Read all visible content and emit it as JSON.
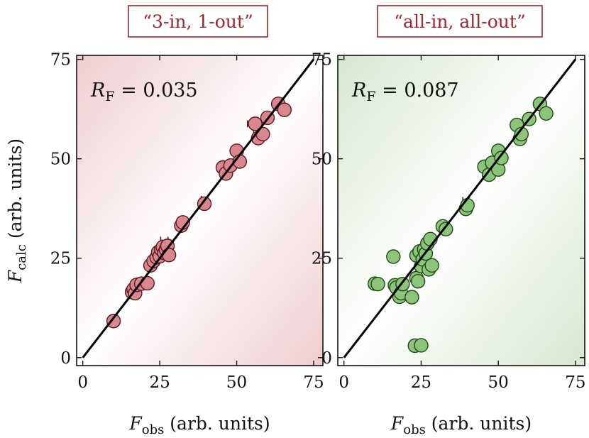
{
  "chart_data": [
    {
      "type": "scatter",
      "title": "“3-in, 1-out”",
      "annotation": {
        "symbol": "R",
        "subscript": "F",
        "equals_text": " = 0.035"
      },
      "xlabel": {
        "symbol": "F",
        "subscript": "obs",
        "rest": " (arb. units)"
      },
      "ylabel": {
        "symbol": "F",
        "subscript": "calc",
        "rest": " (arb. units)"
      },
      "xlim": [
        -2,
        78
      ],
      "ylim": [
        -2,
        76
      ],
      "xticks": [
        0,
        25,
        50,
        75
      ],
      "yticks": [
        0,
        25,
        50,
        75
      ],
      "grid": false,
      "fill_color": "#d9868c",
      "edge_color": "#5a1a22",
      "title_color": "#a0252f",
      "background_gradient": [
        "#efcdd0",
        "#ffffff",
        "#efcdd0"
      ],
      "fit_line": {
        "x": [
          0,
          75
        ],
        "y": [
          0,
          75
        ]
      },
      "points": [
        {
          "x": 10,
          "y": 9.2
        },
        {
          "x": 16,
          "y": 16.5
        },
        {
          "x": 16.5,
          "y": 17.2
        },
        {
          "x": 17,
          "y": 16.2
        },
        {
          "x": 17.5,
          "y": 18.3
        },
        {
          "x": 19,
          "y": 18.6
        },
        {
          "x": 21,
          "y": 18.7
        },
        {
          "x": 22,
          "y": 23.2
        },
        {
          "x": 23,
          "y": 24.3
        },
        {
          "x": 24,
          "y": 25.2
        },
        {
          "x": 24.5,
          "y": 26.5
        },
        {
          "x": 25,
          "y": 25.5
        },
        {
          "x": 25.5,
          "y": 27.2
        },
        {
          "x": 26,
          "y": 27.8
        },
        {
          "x": 26.5,
          "y": 26.3
        },
        {
          "x": 27,
          "y": 27.2
        },
        {
          "x": 27.5,
          "y": 28.1
        },
        {
          "x": 28,
          "y": 25.8
        },
        {
          "x": 32,
          "y": 33.2
        },
        {
          "x": 32.5,
          "y": 34.0
        },
        {
          "x": 39.5,
          "y": 38.7
        },
        {
          "x": 45.5,
          "y": 47.8
        },
        {
          "x": 46.5,
          "y": 46.3
        },
        {
          "x": 48,
          "y": 48.3
        },
        {
          "x": 50,
          "y": 52.0
        },
        {
          "x": 51,
          "y": 49.3
        },
        {
          "x": 56,
          "y": 58.8
        },
        {
          "x": 57,
          "y": 55.2
        },
        {
          "x": 58.5,
          "y": 56.2
        },
        {
          "x": 60,
          "y": 60.3
        },
        {
          "x": 63.5,
          "y": 63.8
        },
        {
          "x": 65.5,
          "y": 62.3
        }
      ],
      "error_bars": [
        {
          "x": 26.5,
          "y": 29.5,
          "xerr": 1.2
        },
        {
          "x": 39.5,
          "y": 39.8,
          "xerr": 1.0
        },
        {
          "x": 55,
          "y": 58.8,
          "xerr": 1.5
        },
        {
          "x": 57,
          "y": 56.2,
          "xerr": 1.5
        },
        {
          "x": 63.5,
          "y": 64.5,
          "xerr": 1.0
        }
      ]
    },
    {
      "type": "scatter",
      "title": "“all-in, all-out”",
      "annotation": {
        "symbol": "R",
        "subscript": "F",
        "equals_text": " = 0.087"
      },
      "xlabel": {
        "symbol": "F",
        "subscript": "obs",
        "rest": " (arb. units)"
      },
      "ylabel": null,
      "xlim": [
        -2,
        78
      ],
      "ylim": [
        -2,
        76
      ],
      "xticks": [
        0,
        25,
        50,
        75
      ],
      "yticks": [
        0,
        25,
        50,
        75
      ],
      "grid": false,
      "fill_color": "#8cc47a",
      "edge_color": "#1f4a18",
      "title_color": "#a0252f",
      "background_gradient": [
        "#d7e8cf",
        "#ffffff",
        "#d7e8cf"
      ],
      "fit_line": {
        "x": [
          0,
          75
        ],
        "y": [
          0,
          75
        ]
      },
      "points": [
        {
          "x": 10,
          "y": 18.6
        },
        {
          "x": 11,
          "y": 18.5
        },
        {
          "x": 16,
          "y": 25.4
        },
        {
          "x": 16.5,
          "y": 18.2
        },
        {
          "x": 17,
          "y": 17.6
        },
        {
          "x": 18,
          "y": 15.3
        },
        {
          "x": 18.5,
          "y": 16.2
        },
        {
          "x": 19,
          "y": 18.5
        },
        {
          "x": 22,
          "y": 15.2
        },
        {
          "x": 23,
          "y": 3.0
        },
        {
          "x": 23.5,
          "y": 20.0
        },
        {
          "x": 23.5,
          "y": 25.7
        },
        {
          "x": 24,
          "y": 19.2
        },
        {
          "x": 24.5,
          "y": 26.7
        },
        {
          "x": 25,
          "y": 3.1
        },
        {
          "x": 25,
          "y": 23.0
        },
        {
          "x": 25.5,
          "y": 24.7
        },
        {
          "x": 26,
          "y": 27.2
        },
        {
          "x": 26.5,
          "y": 26.2
        },
        {
          "x": 27,
          "y": 28.7
        },
        {
          "x": 27.5,
          "y": 22.2
        },
        {
          "x": 28,
          "y": 29.8
        },
        {
          "x": 28.5,
          "y": 23.2
        },
        {
          "x": 32,
          "y": 33.0
        },
        {
          "x": 33,
          "y": 32.3
        },
        {
          "x": 39.5,
          "y": 37.4
        },
        {
          "x": 40,
          "y": 38.3
        },
        {
          "x": 45.5,
          "y": 48.0
        },
        {
          "x": 47,
          "y": 46.0
        },
        {
          "x": 48,
          "y": 49.0
        },
        {
          "x": 50,
          "y": 47.3
        },
        {
          "x": 50,
          "y": 52.0
        },
        {
          "x": 51,
          "y": 50.2
        },
        {
          "x": 56,
          "y": 58.5
        },
        {
          "x": 57,
          "y": 55.0
        },
        {
          "x": 57.5,
          "y": 56.2
        },
        {
          "x": 60,
          "y": 60.0
        },
        {
          "x": 63.5,
          "y": 63.8
        },
        {
          "x": 65.5,
          "y": 61.4
        }
      ],
      "error_bars": [
        {
          "x": 39.5,
          "y": 39.5,
          "xerr": 1.0
        },
        {
          "x": 63.5,
          "y": 64.3,
          "xerr": 1.0
        }
      ]
    }
  ]
}
